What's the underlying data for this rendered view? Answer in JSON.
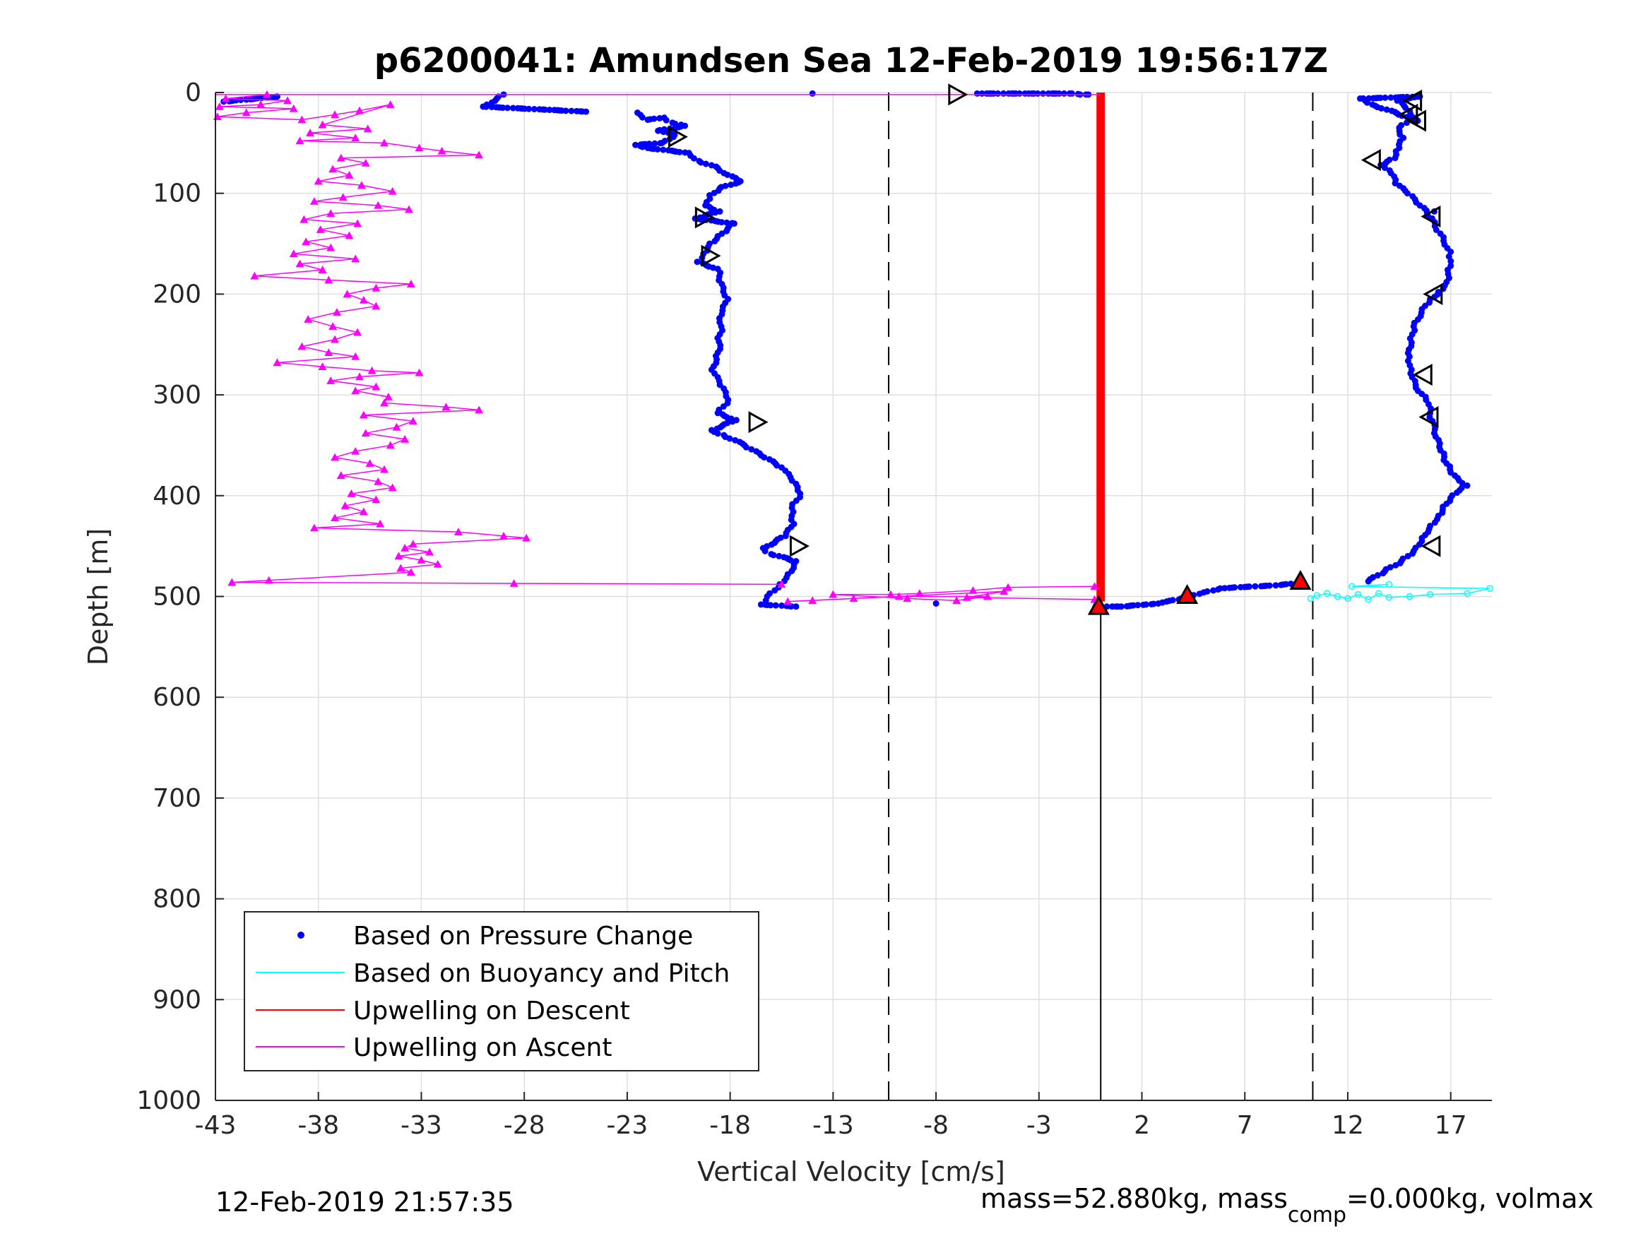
{
  "chart_data": {
    "type": "scatter",
    "title": "p6200041: Amundsen Sea 12-Feb-2019 19:56:17Z",
    "xlabel": "Vertical Velocity [cm/s]",
    "ylabel": "Depth [m]",
    "xlim": [
      -43,
      19
    ],
    "ylim": [
      0,
      1000
    ],
    "y_reversed": true,
    "grid": true,
    "x_ticks": [
      -43,
      -38,
      -33,
      -28,
      -23,
      -18,
      -13,
      -8,
      -3,
      2,
      7,
      12,
      17
    ],
    "y_ticks": [
      0,
      100,
      200,
      300,
      400,
      500,
      600,
      700,
      800,
      900,
      1000
    ],
    "reference_lines": {
      "dashed": [
        -10.3,
        10.3
      ],
      "solid_from_depth": {
        "x": 0,
        "from": 510,
        "to": 1000
      }
    },
    "colors": {
      "pressure": "#0000ff",
      "buoyancy": "#00ffff",
      "descent": "#ff0000",
      "ascent": "#ff00ff",
      "axis": "#262626",
      "grid": "#dfdfdf"
    },
    "legend": {
      "placement": "bottom-left",
      "entries": [
        {
          "label": "Based on Pressure Change",
          "marker": "dot",
          "color": "#0000ff"
        },
        {
          "label": "Based on Buoyancy and Pitch",
          "marker": "line",
          "color": "#00ffff"
        },
        {
          "label": "Upwelling on Descent",
          "marker": "line",
          "color": "#ff0000"
        },
        {
          "label": "Upwelling on Ascent",
          "marker": "line",
          "color": "#ff00ff"
        }
      ]
    },
    "series": [
      {
        "key": "pressure_descent",
        "style": "dots",
        "points": [
          [
            -0.6,
            2
          ],
          [
            -1.0,
            2
          ],
          [
            -1.4,
            1
          ],
          [
            -3.5,
            1
          ],
          [
            -6,
            1
          ],
          [
            -14,
            1
          ],
          [
            -29,
            2
          ],
          [
            -30,
            14
          ],
          [
            -27,
            17
          ],
          [
            -25,
            19
          ],
          [
            -42.6,
            9
          ],
          [
            -40,
            4
          ],
          [
            -22.5,
            20
          ],
          [
            -22,
            27
          ],
          [
            -21.2,
            25
          ],
          [
            -20.8,
            30
          ],
          [
            -20.2,
            33
          ],
          [
            -21.5,
            38
          ],
          [
            -20.7,
            42
          ],
          [
            -21.3,
            50
          ],
          [
            -22.6,
            52
          ],
          [
            -22,
            55
          ],
          [
            -20,
            60
          ],
          [
            -19.5,
            68
          ],
          [
            -18.6,
            75
          ],
          [
            -18.3,
            80
          ],
          [
            -17.5,
            88
          ],
          [
            -18.5,
            95
          ],
          [
            -19.0,
            102
          ],
          [
            -19.2,
            112
          ],
          [
            -18.5,
            118
          ],
          [
            -19.7,
            125
          ],
          [
            -17.8,
            130
          ],
          [
            -18.4,
            140
          ],
          [
            -19.0,
            150
          ],
          [
            -19.3,
            160
          ],
          [
            -19.6,
            168
          ],
          [
            -18.6,
            175
          ],
          [
            -18.4,
            190
          ],
          [
            -18.1,
            205
          ],
          [
            -18.4,
            220
          ],
          [
            -18.5,
            240
          ],
          [
            -18.6,
            258
          ],
          [
            -18.9,
            275
          ],
          [
            -18.5,
            290
          ],
          [
            -18.1,
            305
          ],
          [
            -18.6,
            318
          ],
          [
            -17.7,
            325
          ],
          [
            -18.9,
            335
          ],
          [
            -18.3,
            340
          ],
          [
            -17.3,
            350
          ],
          [
            -16.5,
            360
          ],
          [
            -15.5,
            372
          ],
          [
            -15.0,
            385
          ],
          [
            -14.6,
            398
          ],
          [
            -15.0,
            412
          ],
          [
            -14.9,
            428
          ],
          [
            -15.3,
            440
          ],
          [
            -16.4,
            452
          ],
          [
            -16.0,
            458
          ],
          [
            -14.8,
            465
          ],
          [
            -15.2,
            478
          ],
          [
            -15.6,
            488
          ],
          [
            -16.2,
            500
          ],
          [
            -16.5,
            508
          ],
          [
            -14.8,
            510
          ],
          [
            -8,
            507
          ]
        ]
      },
      {
        "key": "pressure_ascent",
        "style": "dots",
        "points": [
          [
            0.3,
            510
          ],
          [
            1.0,
            510
          ],
          [
            2.2,
            508
          ],
          [
            2.8,
            507
          ],
          [
            3.2,
            505
          ],
          [
            3.8,
            503
          ],
          [
            4.4,
            500
          ],
          [
            5.0,
            496
          ],
          [
            5.8,
            492
          ],
          [
            6.5,
            491
          ],
          [
            7.5,
            490
          ],
          [
            8.5,
            489
          ],
          [
            9.5,
            487
          ],
          [
            13.0,
            485
          ],
          [
            13.8,
            475
          ],
          [
            14.6,
            465
          ],
          [
            15.2,
            455
          ],
          [
            15.6,
            442
          ],
          [
            16.0,
            430
          ],
          [
            16.4,
            420
          ],
          [
            16.8,
            408
          ],
          [
            17.3,
            397
          ],
          [
            17.8,
            390
          ],
          [
            17.2,
            380
          ],
          [
            16.8,
            368
          ],
          [
            16.5,
            355
          ],
          [
            16.2,
            338
          ],
          [
            16.0,
            318
          ],
          [
            15.8,
            305
          ],
          [
            15.3,
            290
          ],
          [
            15.1,
            275
          ],
          [
            15.0,
            262
          ],
          [
            15.1,
            248
          ],
          [
            15.2,
            232
          ],
          [
            15.6,
            215
          ],
          [
            16.0,
            205
          ],
          [
            16.4,
            198
          ],
          [
            16.8,
            188
          ],
          [
            17.0,
            172
          ],
          [
            17.0,
            158
          ],
          [
            16.5,
            140
          ],
          [
            16.1,
            125
          ],
          [
            15.5,
            112
          ],
          [
            14.9,
            100
          ],
          [
            14.3,
            90
          ],
          [
            14.1,
            80
          ],
          [
            13.6,
            72
          ],
          [
            14.3,
            65
          ],
          [
            14.5,
            55
          ],
          [
            14.7,
            45
          ],
          [
            14.5,
            35
          ],
          [
            15.2,
            25
          ],
          [
            14.8,
            15
          ],
          [
            14.4,
            8
          ],
          [
            15.5,
            4
          ],
          [
            12.6,
            6
          ],
          [
            13.2,
            12
          ],
          [
            15.4,
            28
          ],
          [
            16.2,
            118
          ]
        ]
      },
      {
        "key": "buoyancy",
        "style": "cyan",
        "points": [
          [
            10.2,
            502
          ],
          [
            10.5,
            499
          ],
          [
            11.0,
            497
          ],
          [
            11.5,
            500
          ],
          [
            12.0,
            502
          ],
          [
            12.5,
            498
          ],
          [
            13.0,
            503
          ],
          [
            13.5,
            497
          ],
          [
            14.0,
            501
          ],
          [
            15.0,
            500
          ],
          [
            16.0,
            498
          ],
          [
            17.8,
            497
          ],
          [
            18.9,
            492
          ],
          [
            12.2,
            490
          ],
          [
            14.0,
            488
          ]
        ]
      },
      {
        "key": "descent",
        "style": "redcolumn",
        "x": 0,
        "from": 0,
        "to": 505
      },
      {
        "key": "ascent_upper",
        "style": "magenta",
        "points": [
          [
            -40.5,
            2
          ],
          [
            -42.5,
            6
          ],
          [
            -39.5,
            8
          ],
          [
            -40.8,
            12
          ],
          [
            -42.8,
            14
          ],
          [
            -39.2,
            16
          ],
          [
            -41.5,
            20
          ],
          [
            -42.9,
            24
          ],
          [
            -38.8,
            27
          ],
          [
            -37.2,
            22
          ],
          [
            -36.0,
            18
          ],
          [
            -34.5,
            12
          ],
          [
            -37.8,
            32
          ],
          [
            -35.6,
            36
          ],
          [
            -38.4,
            40
          ],
          [
            -36.2,
            45
          ],
          [
            -38.9,
            48
          ],
          [
            -34.8,
            50
          ],
          [
            -33.1,
            55
          ],
          [
            -32.0,
            58
          ],
          [
            -30.2,
            62
          ],
          [
            -36.9,
            65
          ],
          [
            -35.7,
            70
          ],
          [
            -37.3,
            76
          ],
          [
            -36.5,
            82
          ],
          [
            -38.0,
            88
          ],
          [
            -35.9,
            92
          ],
          [
            -34.4,
            98
          ],
          [
            -36.8,
            104
          ],
          [
            -38.2,
            108
          ],
          [
            -35.1,
            112
          ],
          [
            -33.6,
            116
          ],
          [
            -37.4,
            120
          ],
          [
            -38.7,
            126
          ],
          [
            -36.1,
            130
          ],
          [
            -37.9,
            136
          ],
          [
            -36.5,
            142
          ],
          [
            -38.6,
            148
          ],
          [
            -37.4,
            154
          ],
          [
            -39.2,
            160
          ],
          [
            -36.2,
            165
          ],
          [
            -38.9,
            170
          ],
          [
            -37.8,
            176
          ],
          [
            -41.1,
            182
          ],
          [
            -37.5,
            186
          ],
          [
            -33.5,
            190
          ],
          [
            -35.2,
            194
          ],
          [
            -36.6,
            200
          ],
          [
            -35.8,
            206
          ],
          [
            -35.2,
            212
          ],
          [
            -37.1,
            218
          ],
          [
            -38.5,
            225
          ],
          [
            -37.3,
            232
          ],
          [
            -36.1,
            238
          ],
          [
            -37.2,
            245
          ],
          [
            -38.8,
            252
          ],
          [
            -37.5,
            258
          ],
          [
            -36.2,
            262
          ],
          [
            -40.0,
            268
          ],
          [
            -37.8,
            272
          ],
          [
            -35.4,
            276
          ],
          [
            -33.1,
            278
          ],
          [
            -36.0,
            282
          ],
          [
            -37.4,
            286
          ],
          [
            -35.2,
            292
          ],
          [
            -36.2,
            296
          ],
          [
            -34.6,
            302
          ],
          [
            -34.8,
            308
          ],
          [
            -31.8,
            312
          ],
          [
            -30.2,
            315
          ],
          [
            -35.8,
            320
          ],
          [
            -33.4,
            326
          ],
          [
            -34.2,
            332
          ],
          [
            -35.7,
            338
          ],
          [
            -33.8,
            344
          ],
          [
            -34.5,
            350
          ],
          [
            -36.2,
            356
          ],
          [
            -37.2,
            362
          ],
          [
            -35.5,
            368
          ],
          [
            -34.8,
            374
          ],
          [
            -36.9,
            380
          ],
          [
            -35.1,
            386
          ],
          [
            -34.4,
            392
          ],
          [
            -36.4,
            398
          ],
          [
            -35.2,
            404
          ],
          [
            -36.7,
            410
          ],
          [
            -35.8,
            416
          ],
          [
            -37.2,
            422
          ],
          [
            -35.0,
            428
          ],
          [
            -38.2,
            432
          ],
          [
            -31.2,
            436
          ],
          [
            -29.0,
            440
          ],
          [
            -27.9,
            442
          ],
          [
            -33.4,
            448
          ],
          [
            -33.8,
            452
          ],
          [
            -32.6,
            456
          ],
          [
            -34.1,
            460
          ],
          [
            -33.0,
            464
          ],
          [
            -32.2,
            468
          ],
          [
            -34.0,
            472
          ],
          [
            -33.5,
            476
          ],
          [
            -40.4,
            484
          ],
          [
            -42.2,
            486
          ],
          [
            -28.5,
            487
          ],
          [
            -15.5,
            488
          ]
        ]
      },
      {
        "key": "ascent_lower",
        "style": "magenta",
        "points": [
          [
            -0.3,
            490
          ],
          [
            -4.5,
            491
          ],
          [
            -6.2,
            494
          ],
          [
            -8.8,
            497
          ],
          [
            -10.2,
            498
          ],
          [
            -13.0,
            498
          ],
          [
            -9.4,
            502
          ],
          [
            -7.0,
            504
          ],
          [
            -5.5,
            500
          ],
          [
            -9.8,
            500
          ],
          [
            -12.0,
            502
          ],
          [
            -14.0,
            504
          ],
          [
            -15.2,
            505
          ],
          [
            -4.7,
            495
          ],
          [
            -6.5,
            501
          ],
          [
            -0.3,
            503
          ],
          [
            -0.2,
            506
          ]
        ]
      }
    ],
    "red_triangle_markers": [
      [
        9.7,
        485
      ],
      [
        4.2,
        499
      ],
      [
        -0.1,
        510
      ]
    ],
    "descent_arrow_markers": [
      [
        -7.0,
        2
      ],
      [
        -20.6,
        44
      ],
      [
        -19.3,
        124
      ],
      [
        -19.0,
        162
      ],
      [
        -16.7,
        327
      ],
      [
        -14.7,
        450
      ]
    ],
    "ascent_arrow_markers": [
      [
        15.2,
        8
      ],
      [
        15.0,
        22
      ],
      [
        15.4,
        28
      ],
      [
        13.2,
        67
      ],
      [
        16.1,
        123
      ],
      [
        16.2,
        200
      ],
      [
        15.7,
        280
      ],
      [
        16.0,
        322
      ],
      [
        16.1,
        450
      ]
    ]
  },
  "footer": {
    "timestamp": "12-Feb-2019 21:57:35",
    "mass_prefix": "mass=52.880kg, mass",
    "mass_sub": "comp",
    "mass_suffix": "=0.000kg, volmax"
  }
}
